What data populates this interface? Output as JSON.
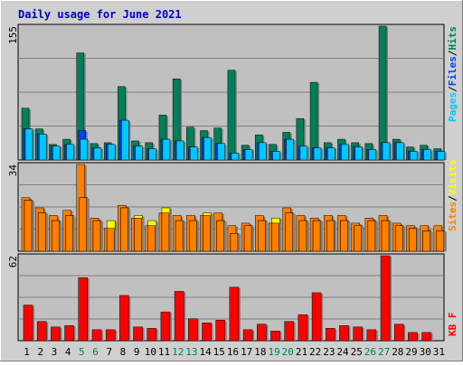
{
  "title": "Daily usage for June 2021",
  "colors": {
    "background": "#cfcfcf",
    "panel": "#c0c0c0",
    "title": "#0000cc",
    "hits": "#00805a",
    "files": "#0040ff",
    "pages": "#00c8ff",
    "visits": "#ffff00",
    "sites": "#ff8000",
    "kbytes": "#ff0000",
    "weekend_day": "#00805a",
    "weekday": "#000000"
  },
  "legend": {
    "pages": "Pages",
    "files": "Files",
    "hits": "Hits",
    "sep": "/",
    "sites": "Sites",
    "visits": "Visits",
    "kbytes": "KB F"
  },
  "chart_data": {
    "type": "bar",
    "title": "Daily usage for June 2021",
    "categories": [
      "1",
      "2",
      "3",
      "4",
      "5",
      "6",
      "7",
      "8",
      "9",
      "10",
      "11",
      "12",
      "13",
      "14",
      "15",
      "16",
      "17",
      "18",
      "19",
      "20",
      "21",
      "22",
      "23",
      "24",
      "25",
      "26",
      "27",
      "28",
      "29",
      "30",
      "31"
    ],
    "weekend_days": [
      "5",
      "6",
      "12",
      "13",
      "19",
      "20",
      "26",
      "27"
    ],
    "panels": [
      {
        "id": "hits-files-pages",
        "max_label": "155",
        "ymax": 155,
        "series": [
          {
            "name": "Hits",
            "values": [
              60,
              36,
              18,
              24,
              124,
              19,
              20,
              85,
              22,
              20,
              52,
              94,
              38,
              34,
              37,
              104,
              17,
              29,
              18,
              32,
              48,
              90,
              20,
              24,
              20,
              19,
              155,
              24,
              15,
              17,
              13
            ]
          },
          {
            "name": "Files",
            "values": [
              36,
              30,
              16,
              18,
              34,
              14,
              18,
              46,
              16,
              13,
              24,
              22,
              15,
              26,
              19,
              8,
              12,
              20,
              10,
              24,
              16,
              14,
              14,
              18,
              15,
              12,
              20,
              20,
              10,
              12,
              10
            ]
          },
          {
            "name": "Pages",
            "values": [
              36,
              30,
              16,
              18,
              24,
              14,
              18,
              46,
              16,
              13,
              24,
              22,
              15,
              26,
              19,
              8,
              12,
              20,
              10,
              24,
              16,
              14,
              14,
              18,
              15,
              12,
              20,
              20,
              10,
              12,
              10
            ]
          }
        ]
      },
      {
        "id": "visits-sites",
        "max_label": "34",
        "ymax": 34,
        "series": [
          {
            "name": "Visits",
            "values": [
              20,
              15,
              12,
              14,
              21,
              12,
              12,
              17,
              14,
              12,
              17,
              12,
              12,
              15,
              12,
              7,
              10,
              12,
              13,
              15,
              12,
              12,
              12,
              12,
              10,
              12,
              12,
              10,
              9,
              8,
              8
            ]
          },
          {
            "name": "Sites",
            "values": [
              21,
              17,
              14,
              16,
              34,
              13,
              9,
              18,
              13,
              10,
              15,
              14,
              14,
              14,
              15,
              10,
              11,
              14,
              11,
              17,
              14,
              13,
              14,
              14,
              11,
              13,
              14,
              11,
              10,
              10,
              10
            ]
          }
        ]
      },
      {
        "id": "kbytes",
        "max_label": "62",
        "ymax": 62,
        "series": [
          {
            "name": "KB F",
            "values": [
              26,
              14,
              10,
              11,
              46,
              8,
              8,
              33,
              10,
              9,
              21,
              36,
              16,
              13,
              15,
              39,
              8,
              12,
              7,
              14,
              19,
              35,
              9,
              11,
              10,
              8,
              62,
              12,
              6,
              6,
              0
            ]
          }
        ]
      }
    ]
  }
}
